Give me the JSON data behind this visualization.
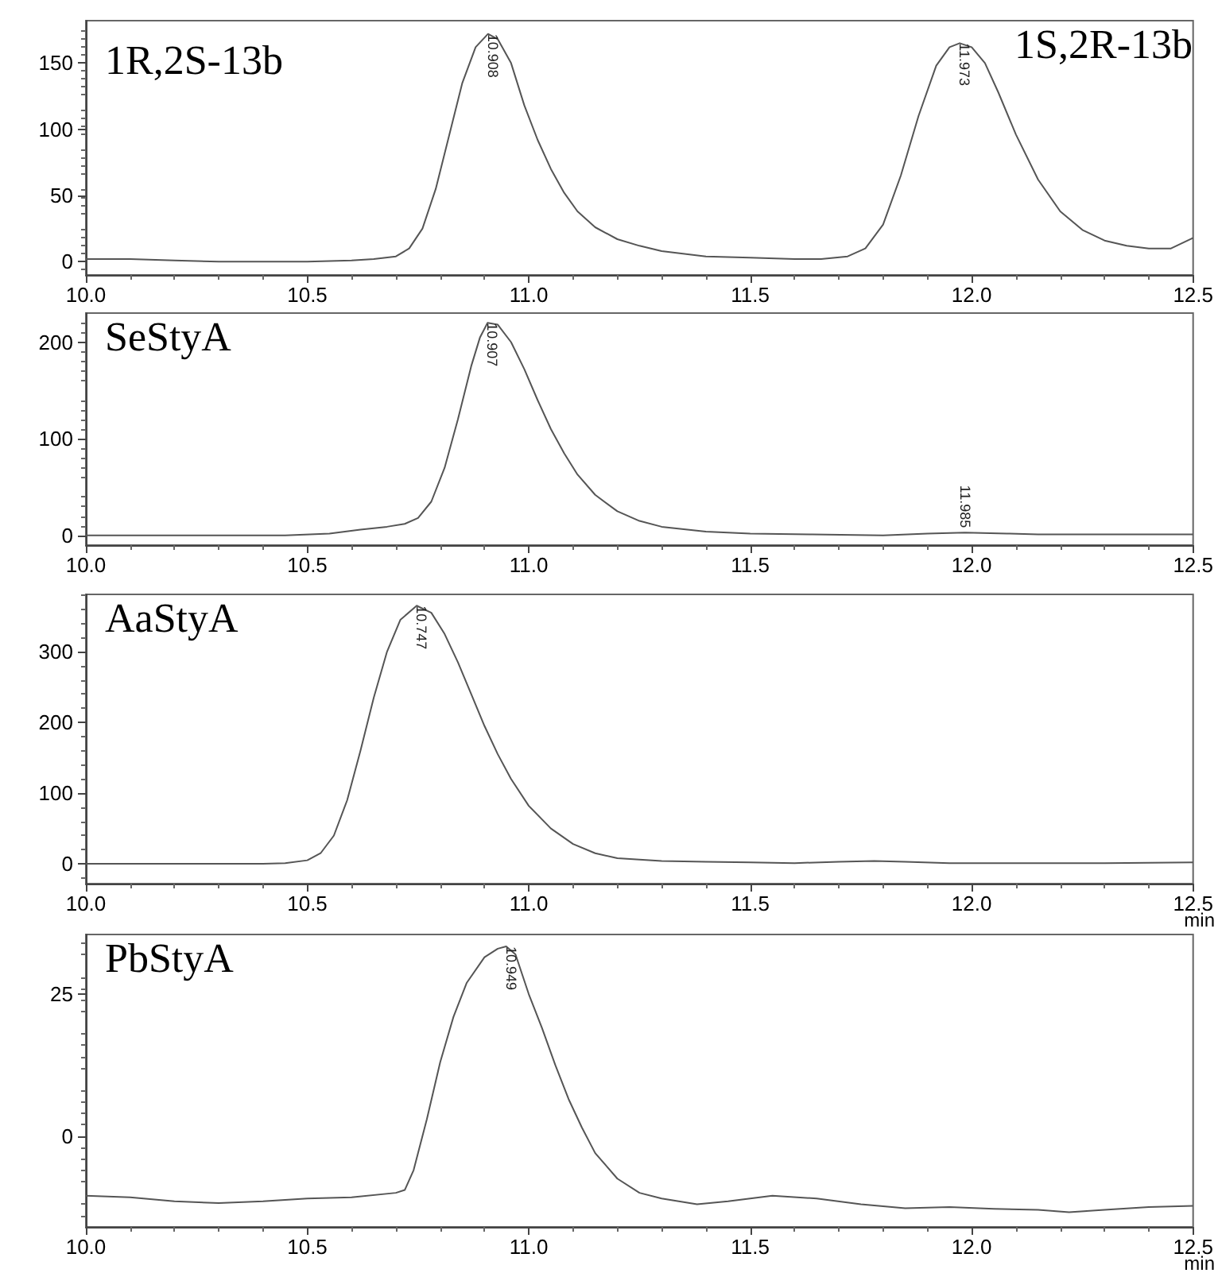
{
  "chart_data": [
    {
      "type": "line",
      "annotations": [
        "1R,2S-13b",
        "1S,2R-13b",
        {
          "text": "10.908",
          "x": 10.908,
          "y": 172
        },
        {
          "text": "11.973",
          "x": 11.973,
          "y": 165
        }
      ],
      "x": [
        10.0,
        10.1,
        10.2,
        10.3,
        10.4,
        10.5,
        10.6,
        10.65,
        10.7,
        10.73,
        10.76,
        10.79,
        10.82,
        10.85,
        10.88,
        10.908,
        10.93,
        10.96,
        10.99,
        11.02,
        11.05,
        11.08,
        11.11,
        11.15,
        11.2,
        11.25,
        11.3,
        11.4,
        11.5,
        11.6,
        11.66,
        11.72,
        11.76,
        11.8,
        11.84,
        11.88,
        11.92,
        11.95,
        11.973,
        12.0,
        12.03,
        12.06,
        12.1,
        12.15,
        12.2,
        12.25,
        12.3,
        12.35,
        12.4,
        12.45,
        12.5
      ],
      "series": [
        {
          "color": "#555555",
          "values": [
            2,
            2,
            1,
            0,
            0,
            0,
            1,
            2,
            4,
            10,
            25,
            55,
            95,
            135,
            162,
            172,
            168,
            150,
            118,
            92,
            70,
            52,
            38,
            26,
            17,
            12,
            8,
            4,
            3,
            2,
            2,
            4,
            10,
            28,
            65,
            110,
            148,
            162,
            165,
            162,
            150,
            128,
            96,
            62,
            38,
            24,
            16,
            12,
            10,
            10,
            18
          ]
        }
      ],
      "xlim": [
        10,
        12.5
      ],
      "xticks": [
        {
          "value": 10,
          "label": "10.0"
        },
        {
          "value": 10.5,
          "label": "10.5"
        },
        {
          "value": 11,
          "label": "11.0"
        },
        {
          "value": 11.5,
          "label": "11.5"
        },
        {
          "value": 12,
          "label": "12.0"
        },
        {
          "value": 12.5,
          "label": "12.5"
        }
      ],
      "ylim": [
        -10,
        182
      ],
      "yticks": [
        0,
        50,
        100,
        150
      ],
      "grid": false
    },
    {
      "type": "line",
      "annotations": [
        "SeStyA",
        {
          "text": "10.907",
          "x": 10.907,
          "y": 220
        },
        {
          "text": "11.985",
          "x": 11.985,
          "y": 3
        }
      ],
      "x": [
        10.0,
        10.3,
        10.45,
        10.55,
        10.62,
        10.68,
        10.72,
        10.75,
        10.78,
        10.81,
        10.84,
        10.87,
        10.89,
        10.907,
        10.93,
        10.96,
        10.99,
        11.02,
        11.05,
        11.08,
        11.11,
        11.15,
        11.2,
        11.25,
        11.3,
        11.4,
        11.5,
        11.64,
        11.8,
        11.9,
        11.985,
        12.08,
        12.15,
        12.3,
        12.5
      ],
      "series": [
        {
          "color": "#555555",
          "values": [
            0,
            0,
            0,
            2,
            6,
            9,
            12,
            18,
            35,
            70,
            120,
            175,
            205,
            220,
            218,
            200,
            172,
            140,
            110,
            85,
            63,
            42,
            25,
            15,
            9,
            4,
            2,
            1,
            0,
            2,
            3,
            2,
            1,
            1,
            1
          ]
        }
      ],
      "xlim": [
        10,
        12.5
      ],
      "xticks": [
        {
          "value": 10,
          "label": "10.0"
        },
        {
          "value": 10.5,
          "label": "10.5"
        },
        {
          "value": 11,
          "label": "11.0"
        },
        {
          "value": 11.5,
          "label": "11.5"
        },
        {
          "value": 12,
          "label": "12.0"
        },
        {
          "value": 12.5,
          "label": "12.5"
        }
      ],
      "ylim": [
        -10,
        230
      ],
      "yticks": [
        0,
        100,
        200
      ],
      "grid": false
    },
    {
      "type": "line",
      "xlabel": "min",
      "annotations": [
        "AaStyA",
        {
          "text": "10.747",
          "x": 10.747,
          "y": 365
        }
      ],
      "x": [
        10.0,
        10.2,
        10.4,
        10.45,
        10.5,
        10.53,
        10.56,
        10.59,
        10.62,
        10.65,
        10.68,
        10.71,
        10.747,
        10.78,
        10.81,
        10.84,
        10.87,
        10.9,
        10.93,
        10.96,
        11.0,
        11.05,
        11.1,
        11.15,
        11.2,
        11.3,
        11.4,
        11.5,
        11.6,
        11.7,
        11.78,
        11.85,
        11.95,
        12.1,
        12.3,
        12.5
      ],
      "series": [
        {
          "color": "#555555",
          "values": [
            0,
            0,
            0,
            1,
            5,
            15,
            40,
            90,
            160,
            235,
            300,
            345,
            365,
            355,
            325,
            285,
            240,
            195,
            155,
            120,
            82,
            50,
            28,
            15,
            8,
            4,
            3,
            2,
            1,
            3,
            4,
            3,
            1,
            1,
            1,
            2
          ]
        }
      ],
      "xlim": [
        10,
        12.5
      ],
      "xticks": [
        {
          "value": 10,
          "label": "10.0"
        },
        {
          "value": 10.5,
          "label": "10.5"
        },
        {
          "value": 11,
          "label": "11.0"
        },
        {
          "value": 11.5,
          "label": "11.5"
        },
        {
          "value": 12,
          "label": "12.0"
        },
        {
          "value": 12.5,
          "label": "12.5"
        }
      ],
      "ylim": [
        -28,
        381
      ],
      "yticks": [
        0,
        100,
        200,
        300
      ],
      "grid": false
    },
    {
      "type": "line",
      "xlabel": "min",
      "annotations": [
        "PbStyA",
        {
          "text": "10.949",
          "x": 10.949,
          "y": 33.4
        }
      ],
      "x": [
        10.0,
        10.1,
        10.2,
        10.3,
        10.4,
        10.5,
        10.6,
        10.7,
        10.72,
        10.74,
        10.77,
        10.8,
        10.83,
        10.86,
        10.9,
        10.93,
        10.949,
        10.97,
        11.0,
        11.03,
        11.06,
        11.09,
        11.12,
        11.15,
        11.2,
        11.25,
        11.3,
        11.38,
        11.45,
        11.55,
        11.65,
        11.75,
        11.85,
        11.95,
        12.05,
        12.15,
        12.22,
        12.3,
        12.4,
        12.5
      ],
      "series": [
        {
          "color": "#555555",
          "values": [
            -10.5,
            -10.8,
            -11.5,
            -11.8,
            -11.5,
            -11,
            -10.8,
            -10,
            -9.5,
            -6,
            3,
            13,
            21,
            27,
            31.5,
            33,
            33.4,
            32,
            25,
            19,
            12.5,
            6.5,
            1.5,
            -3,
            -7.5,
            -10,
            -11,
            -12,
            -11.5,
            -10.5,
            -11,
            -12,
            -12.7,
            -12.5,
            -12.8,
            -13,
            -13.4,
            -13,
            -12.5,
            -12.3
          ]
        }
      ],
      "xlim": [
        10,
        12.5
      ],
      "xticks": [
        {
          "value": 10,
          "label": "10.0"
        },
        {
          "value": 10.5,
          "label": "10.5"
        },
        {
          "value": 11,
          "label": "11.0"
        },
        {
          "value": 11.5,
          "label": "11.5"
        },
        {
          "value": 12,
          "label": "12.0"
        },
        {
          "value": 12.5,
          "label": "12.5"
        }
      ],
      "ylim": [
        -16,
        35.5
      ],
      "yticks": [
        0,
        25
      ],
      "grid": false
    }
  ]
}
